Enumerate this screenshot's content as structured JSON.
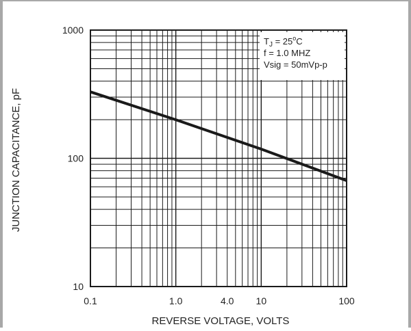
{
  "chart_data": {
    "type": "line",
    "xlabel": "REVERSE VOLTAGE, VOLTS",
    "ylabel": "JUNCTION CAPACITANCE, pF",
    "x_scale": "log",
    "y_scale": "log",
    "xlim": [
      0.1,
      100
    ],
    "ylim": [
      10,
      1000
    ],
    "grid": true,
    "x_ticks": [
      {
        "value": 0.1,
        "label": "0.1"
      },
      {
        "value": 1,
        "label": "1.0"
      },
      {
        "value": 4,
        "label": "4.0"
      },
      {
        "value": 10,
        "label": "10"
      },
      {
        "value": 100,
        "label": "100"
      }
    ],
    "y_ticks": [
      {
        "value": 10,
        "label": "10"
      },
      {
        "value": 100,
        "label": "100"
      },
      {
        "value": 1000,
        "label": "1000"
      }
    ],
    "series": [
      {
        "x": [
          0.1,
          1,
          10,
          100
        ],
        "values": [
          330,
          200,
          118,
          67
        ]
      }
    ],
    "annotation": {
      "lines": [
        {
          "prefix": "T",
          "sub": "J",
          "mid": " = 25",
          "sup": "o",
          "suffix": "C"
        },
        {
          "prefix": "f = 1.0 MHZ"
        },
        {
          "prefix": "Vsig = 50mVp-p"
        }
      ],
      "placement": "top-right"
    },
    "colors": {
      "line": "#1a1a1a",
      "grid": "#1a1a1a",
      "frame": "#a8a8a8"
    }
  }
}
